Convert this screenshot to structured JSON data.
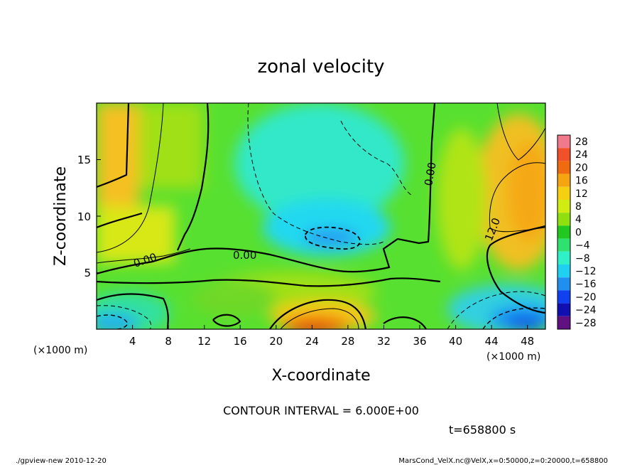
{
  "chart_data": {
    "type": "heatmap",
    "title": "zonal velocity",
    "xlabel": "X-coordinate",
    "ylabel": "Z-coordinate",
    "x_unit": "(×1000 m)",
    "y_unit": "(×1000 m)",
    "x_ticks": [
      "4",
      "8",
      "12",
      "16",
      "20",
      "24",
      "28",
      "32",
      "36",
      "40",
      "44",
      "48"
    ],
    "y_ticks": [
      "5",
      "10",
      "15"
    ],
    "xlim": [
      0,
      50
    ],
    "ylim": [
      0,
      20
    ],
    "colorbar": {
      "ticks": [
        "28",
        "24",
        "20",
        "16",
        "12",
        "8",
        "4",
        "0",
        "−4",
        "−8",
        "−12",
        "−16",
        "−20",
        "−24",
        "−28"
      ],
      "colors": [
        "#f07a8c",
        "#f0502a",
        "#f06a10",
        "#f5a510",
        "#f5d010",
        "#d0ec10",
        "#90e010",
        "#20c820",
        "#30e070",
        "#30f0c8",
        "#20d0f0",
        "#2090f0",
        "#1040f0",
        "#1010b0",
        "#601080"
      ]
    },
    "field_samples": [
      {
        "x": 1,
        "z": 17,
        "value": 12
      },
      {
        "x": 4,
        "z": 9,
        "value": 10
      },
      {
        "x": 10,
        "z": 15,
        "value": 4
      },
      {
        "x": 23,
        "z": 15,
        "value": -9
      },
      {
        "x": 26,
        "z": 8,
        "value": -13
      },
      {
        "x": 25,
        "z": 1,
        "value": 20
      },
      {
        "x": 2,
        "z": 1,
        "value": -14
      },
      {
        "x": 48,
        "z": 1.5,
        "value": -18
      },
      {
        "x": 46,
        "z": 11,
        "value": 14
      },
      {
        "x": 33,
        "z": 13,
        "value": 2
      },
      {
        "x": 40,
        "z": 10,
        "value": 4
      },
      {
        "x": 15,
        "z": 3,
        "value": 3
      }
    ],
    "contour_labels": [
      {
        "text": "0.00",
        "x": 5,
        "z": 6
      },
      {
        "text": "0.00",
        "x": 16.5,
        "z": 6.5
      },
      {
        "text": "0.00",
        "x": 37,
        "z": 14
      },
      {
        "text": "12.0",
        "x": 44.5,
        "z": 9
      }
    ],
    "contour_interval": "CONTOUR INTERVAL = 6.000E+00",
    "time": "t=658800 s",
    "footer_left": "./gpview-new  2010-12-20",
    "footer_right": "MarsCond_VelX.nc@VelX,x=0:50000,z=0:20000,t=658800"
  }
}
